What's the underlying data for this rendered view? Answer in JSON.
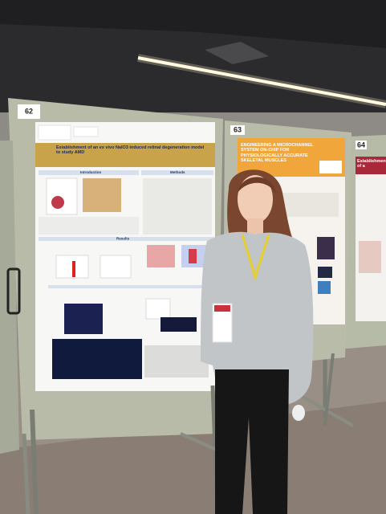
{
  "boards": [
    {
      "number": "62",
      "poster": {
        "title": "Establishment of an ex vivo NaIO3 induced retinal degeneration model to study AMD",
        "sections": [
          "Introduction",
          "Methods",
          "Results"
        ]
      }
    },
    {
      "number": "63",
      "poster": {
        "title": "Engineering a Microchannel System On-Chip for Physiologically Accurate Skeletal Muscles"
      }
    },
    {
      "number": "64",
      "poster": {
        "title": "Establishment of a"
      }
    }
  ]
}
